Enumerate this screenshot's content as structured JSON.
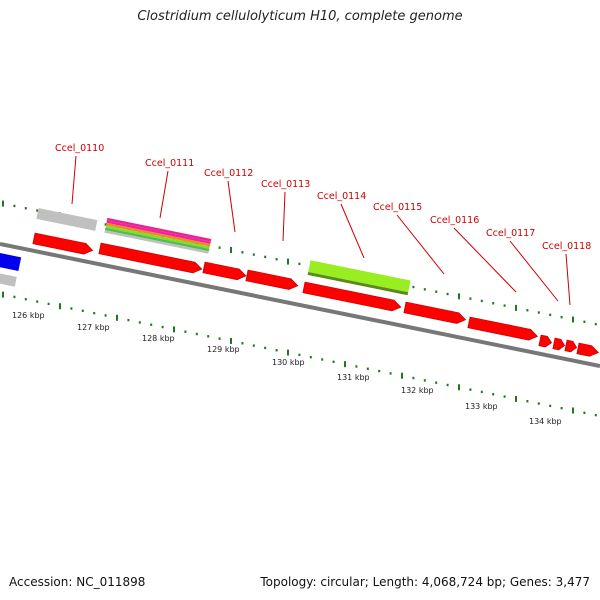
{
  "title": "Clostridium cellulolyticum H10, complete genome",
  "footer": {
    "accession": "Accession: NC_011898",
    "summary": "Topology: circular; Length: 4,068,724 bp; Genes: 3,477"
  },
  "gene_labels": [
    "Ccel_0110",
    "Ccel_0111",
    "Ccel_0112",
    "Ccel_0113",
    "Ccel_0114",
    "Ccel_0115",
    "Ccel_0116",
    "Ccel_0117",
    "Ccel_0118"
  ],
  "kbp_labels": [
    "126 kbp",
    "127 kbp",
    "128 kbp",
    "129 kbp",
    "130 kbp",
    "131 kbp",
    "132 kbp",
    "133 kbp",
    "134 kbp"
  ],
  "colors": {
    "cds": "#ff0000",
    "selected_gene": "#99ee22",
    "backbone": "#7f7f7f",
    "gray_feature": "#c0c0c0",
    "blue_feature": "#0000ee",
    "tick": "#227722",
    "label": "#cc0000"
  }
}
